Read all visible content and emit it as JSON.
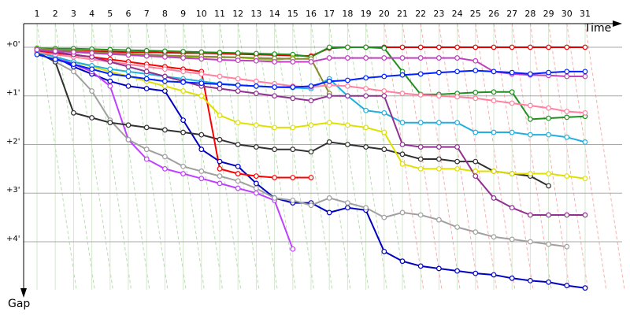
{
  "chart_data": {
    "type": "line",
    "x_label": "Time",
    "y_label": "Gap",
    "x": [
      1,
      2,
      3,
      4,
      5,
      6,
      7,
      8,
      9,
      10,
      11,
      12,
      13,
      14,
      15,
      16,
      17,
      18,
      19,
      20,
      21,
      22,
      23,
      24,
      25,
      26,
      27,
      28,
      29,
      30,
      31
    ],
    "xlim": [
      0,
      33
    ],
    "xticks": [
      1,
      2,
      3,
      4,
      5,
      6,
      7,
      8,
      9,
      10,
      11,
      12,
      13,
      14,
      15,
      16,
      17,
      18,
      19,
      20,
      21,
      22,
      23,
      24,
      25,
      26,
      27,
      28,
      29,
      30,
      31
    ],
    "ylim": [
      -0.5,
      5.2
    ],
    "y_inverted": true,
    "yticks": [
      {
        "value": 0,
        "label": "+0'"
      },
      {
        "value": 1,
        "label": "+1'"
      },
      {
        "value": 2,
        "label": "+2'"
      },
      {
        "value": 3,
        "label": "+3'"
      },
      {
        "value": 4,
        "label": "+4'"
      }
    ],
    "grid": true,
    "series": [
      {
        "color": "#e00000",
        "values": [
          0.05,
          0.06,
          0.07,
          0.08,
          0.09,
          0.1,
          0.1,
          0.11,
          0.12,
          0.12,
          0.13,
          0.14,
          0.15,
          0.16,
          0.17,
          0.18,
          0.02,
          0,
          0,
          0,
          0,
          0,
          0,
          0,
          0,
          0,
          0,
          0,
          0,
          0,
          0
        ]
      },
      {
        "color": "#209020",
        "values": [
          0.02,
          0.03,
          0.03,
          0.04,
          0.05,
          0.06,
          0.07,
          0.08,
          0.09,
          0.1,
          0.11,
          0.12,
          0.13,
          0.14,
          0.15,
          0.2,
          0,
          0,
          0,
          0.02,
          0.5,
          0.97,
          0.97,
          0.95,
          0.93,
          0.92,
          0.92,
          1.48,
          1.46,
          1.44,
          1.42
        ]
      },
      {
        "color": "#80e000",
        "values": [
          0.03,
          0.06,
          0.09,
          0.12,
          0.14,
          0.16,
          0.18,
          0.19,
          0.19,
          0.2,
          0.21,
          0.21,
          0.24,
          0.26,
          0.22,
          null,
          null,
          null,
          null,
          null,
          null,
          null,
          null,
          null,
          null,
          null,
          null,
          null,
          null,
          null,
          null
        ]
      },
      {
        "color": "#8a8a30",
        "values": [
          0.04,
          0.06,
          0.08,
          0.1,
          0.12,
          0.14,
          0.15,
          0.17,
          0.18,
          0.19,
          0.2,
          0.21,
          0.22,
          0.23,
          0.24,
          0.24,
          0.95,
          null,
          null,
          null,
          null,
          null,
          null,
          null,
          null,
          null,
          null,
          null,
          null,
          null,
          null
        ]
      },
      {
        "color": "#0000c0",
        "values": [
          0.1,
          0.2,
          0.4,
          0.55,
          0.7,
          0.8,
          0.85,
          0.9,
          1.5,
          2.1,
          2.35,
          2.45,
          2.8,
          3.1,
          3.2,
          3.2,
          3.4,
          3.3,
          3.35,
          4.2,
          4.4,
          4.5,
          4.55,
          4.6,
          4.65,
          4.68,
          4.75,
          4.8,
          4.83,
          4.9,
          4.95
        ]
      },
      {
        "color": "#c040ff",
        "values": [
          0.1,
          0.2,
          0.35,
          0.5,
          0.8,
          1.9,
          2.3,
          2.5,
          2.6,
          2.7,
          2.8,
          2.9,
          3.0,
          3.15,
          4.15,
          null,
          null,
          null,
          null,
          null,
          null,
          null,
          null,
          null,
          null,
          null,
          null,
          null,
          null,
          null,
          null
        ]
      },
      {
        "color": "#a0a0a0",
        "values": [
          0.1,
          0.3,
          0.5,
          0.9,
          1.5,
          1.9,
          2.1,
          2.25,
          2.45,
          2.55,
          2.65,
          2.75,
          2.9,
          3.1,
          3.15,
          3.25,
          3.1,
          3.2,
          3.3,
          3.5,
          3.4,
          3.45,
          3.55,
          3.7,
          3.8,
          3.9,
          3.95,
          4.0,
          4.05,
          4.1,
          null
        ]
      },
      {
        "color": "#303030",
        "values": [
          0.1,
          0.3,
          1.35,
          1.45,
          1.55,
          1.6,
          1.65,
          1.7,
          1.75,
          1.8,
          1.9,
          2.0,
          2.05,
          2.1,
          2.1,
          2.15,
          1.95,
          2.0,
          2.05,
          2.1,
          2.2,
          2.3,
          2.3,
          2.35,
          2.35,
          2.55,
          2.6,
          2.65,
          2.85,
          null,
          null
        ]
      },
      {
        "color": "#ff0000",
        "values": [
          0.08,
          0.12,
          0.16,
          0.2,
          0.25,
          0.3,
          0.35,
          0.4,
          0.45,
          0.5,
          2.5,
          2.6,
          2.65,
          2.68,
          2.68,
          2.68,
          null,
          null,
          null,
          null,
          null,
          null,
          null,
          null,
          null,
          null,
          null,
          null,
          null,
          null,
          null
        ]
      },
      {
        "color": "#e0e000",
        "values": [
          0.1,
          0.2,
          0.3,
          0.4,
          0.5,
          0.6,
          0.7,
          0.8,
          0.9,
          1.0,
          1.4,
          1.55,
          1.6,
          1.65,
          1.65,
          1.6,
          1.55,
          1.6,
          1.65,
          1.75,
          2.4,
          2.5,
          2.5,
          2.5,
          2.55,
          2.55,
          2.6,
          2.6,
          2.6,
          2.65,
          2.7
        ]
      },
      {
        "color": "#20b0e0",
        "values": [
          0.1,
          0.2,
          0.3,
          0.38,
          0.45,
          0.5,
          0.55,
          0.6,
          0.65,
          0.7,
          0.75,
          0.78,
          0.8,
          0.82,
          0.83,
          0.85,
          0.65,
          1.0,
          1.3,
          1.35,
          1.55,
          1.55,
          1.55,
          1.55,
          1.75,
          1.75,
          1.75,
          1.8,
          1.8,
          1.85,
          1.95
        ]
      },
      {
        "color": "#ff80a0",
        "values": [
          0.1,
          0.15,
          0.2,
          0.25,
          0.3,
          0.35,
          0.4,
          0.45,
          0.5,
          0.55,
          0.6,
          0.65,
          0.7,
          0.75,
          0.8,
          0.82,
          0.78,
          0.8,
          0.85,
          0.9,
          0.95,
          0.98,
          1.0,
          1.02,
          1.05,
          1.1,
          1.15,
          1.2,
          1.25,
          1.32,
          1.35
        ]
      },
      {
        "color": "#903090",
        "values": [
          0.05,
          0.1,
          0.15,
          0.2,
          0.3,
          0.4,
          0.5,
          0.6,
          0.7,
          0.8,
          0.85,
          0.9,
          0.95,
          1.0,
          1.05,
          1.1,
          1.0,
          1.0,
          1.0,
          1.0,
          2.0,
          2.05,
          2.05,
          2.05,
          2.65,
          3.1,
          3.3,
          3.45,
          3.45,
          3.45,
          3.45
        ]
      },
      {
        "color": "#c040c0",
        "values": [
          0.05,
          0.08,
          0.1,
          0.12,
          0.14,
          0.16,
          0.18,
          0.2,
          0.22,
          0.24,
          0.26,
          0.27,
          0.28,
          0.3,
          0.3,
          0.3,
          0.22,
          0.22,
          0.22,
          0.22,
          0.22,
          0.22,
          0.22,
          0.22,
          0.28,
          0.5,
          0.55,
          0.57,
          0.58,
          0.6,
          0.6
        ]
      },
      {
        "color": "#0020ff",
        "values": [
          0.15,
          0.25,
          0.35,
          0.45,
          0.55,
          0.6,
          0.65,
          0.7,
          0.72,
          0.74,
          0.76,
          0.78,
          0.8,
          0.82,
          0.82,
          0.8,
          0.7,
          0.68,
          0.63,
          0.6,
          0.57,
          0.55,
          0.52,
          0.5,
          0.48,
          0.5,
          0.52,
          0.55,
          0.52,
          0.5,
          0.5
        ]
      }
    ]
  }
}
